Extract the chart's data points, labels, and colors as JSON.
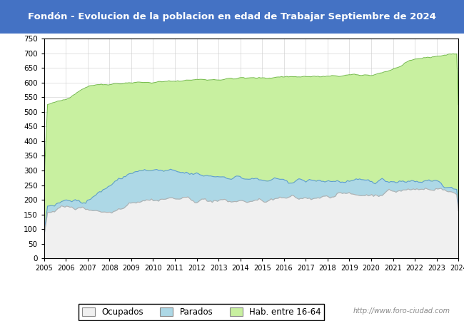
{
  "title": "Fondón - Evolucion de la poblacion en edad de Trabajar Septiembre de 2024",
  "title_bg": "#4472c4",
  "title_color": "white",
  "ylim": [
    0,
    750
  ],
  "yticks": [
    0,
    50,
    100,
    150,
    200,
    250,
    300,
    350,
    400,
    450,
    500,
    550,
    600,
    650,
    700,
    750
  ],
  "legend_labels": [
    "Ocupados",
    "Parados",
    "Hab. entre 16-64"
  ],
  "legend_colors": [
    "#f0f0f0",
    "#add8e6",
    "#c8f0a0"
  ],
  "legend_edge_colors": [
    "#aaaaaa",
    "#aaaaaa",
    "#aaaaaa"
  ],
  "url_text": "http://www.foro-ciudad.com",
  "color_hab": "#c8f0a0",
  "color_par": "#add8e6",
  "color_ocu": "#f0f0f0",
  "line_color_hab": "#7abf50",
  "line_color_par": "#5b9bd5",
  "line_color_ocu": "#b0b0b0",
  "years": [
    2005,
    2006,
    2007,
    2008,
    2009,
    2010,
    2011,
    2012,
    2013,
    2014,
    2015,
    2016,
    2017,
    2018,
    2019,
    2020,
    2021,
    2022,
    2023,
    2024
  ],
  "hab_16_64": [
    520,
    545,
    590,
    595,
    600,
    600,
    605,
    610,
    610,
    615,
    615,
    620,
    620,
    620,
    625,
    625,
    645,
    680,
    690,
    700
  ],
  "parados": [
    175,
    195,
    200,
    250,
    295,
    300,
    295,
    285,
    280,
    275,
    265,
    265,
    265,
    265,
    260,
    265,
    265,
    265,
    265,
    220
  ],
  "ocupados": [
    160,
    175,
    170,
    155,
    195,
    200,
    205,
    200,
    195,
    195,
    195,
    205,
    205,
    215,
    220,
    215,
    230,
    235,
    240,
    215
  ]
}
